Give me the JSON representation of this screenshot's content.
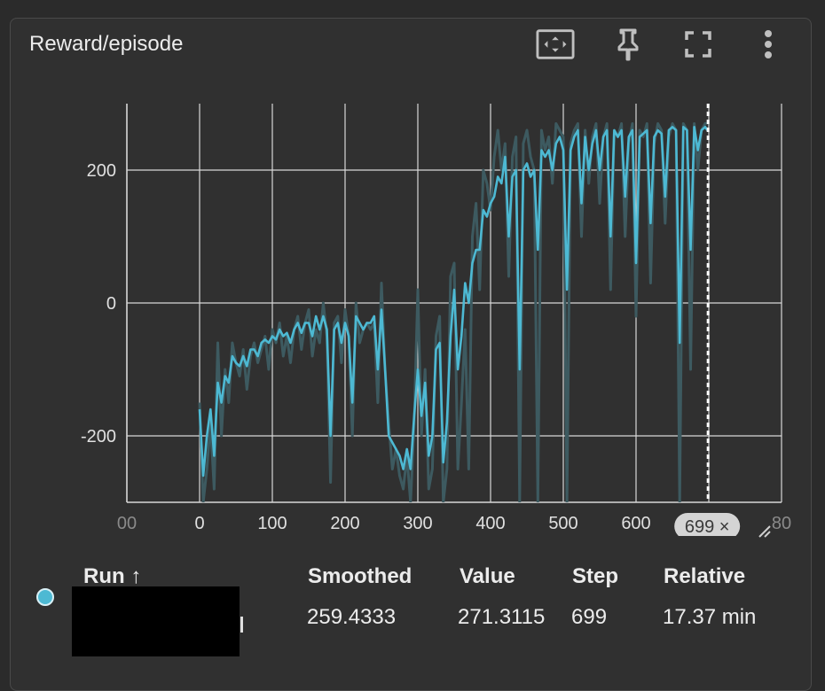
{
  "card": {
    "title": "Reward/episode"
  },
  "toolbar": {
    "fit_icon": "fit-domain-icon",
    "pin_icon": "pin-icon",
    "fullscreen_icon": "fullscreen-icon",
    "more_icon": "more-vert-icon"
  },
  "colors": {
    "raw": "#3d5a60",
    "smoothed": "#4db9d3",
    "background": "#303030",
    "grid": "#d8d8d8",
    "step_marker": "#ffffff"
  },
  "chart_data": {
    "type": "line",
    "title": "Reward/episode",
    "xlabel": "",
    "ylabel": "",
    "x_ticks": [
      "00",
      "0",
      "100",
      "200",
      "300",
      "400",
      "500",
      "600",
      "80"
    ],
    "y_ticks": [
      "200",
      "0",
      "-200"
    ],
    "xlim": [
      -100,
      800
    ],
    "ylim": [
      -300,
      300
    ],
    "grid": true,
    "step_marker": {
      "value": 699,
      "label": "699 ×"
    },
    "series": [
      {
        "role": "raw",
        "x": [
          0,
          5,
          10,
          15,
          20,
          25,
          30,
          35,
          40,
          45,
          50,
          55,
          60,
          65,
          70,
          75,
          80,
          85,
          90,
          95,
          100,
          105,
          110,
          115,
          120,
          125,
          130,
          135,
          140,
          145,
          150,
          155,
          160,
          165,
          170,
          175,
          180,
          185,
          190,
          195,
          200,
          205,
          210,
          215,
          220,
          225,
          230,
          235,
          240,
          245,
          250,
          255,
          260,
          265,
          270,
          275,
          280,
          285,
          290,
          295,
          300,
          305,
          310,
          315,
          320,
          325,
          330,
          335,
          340,
          345,
          350,
          355,
          360,
          365,
          370,
          375,
          380,
          385,
          390,
          395,
          400,
          405,
          410,
          415,
          420,
          425,
          430,
          435,
          440,
          445,
          450,
          455,
          460,
          465,
          470,
          475,
          480,
          485,
          490,
          495,
          500,
          505,
          510,
          515,
          520,
          525,
          530,
          535,
          540,
          545,
          550,
          555,
          560,
          565,
          570,
          575,
          580,
          585,
          590,
          595,
          600,
          605,
          610,
          615,
          620,
          625,
          630,
          635,
          640,
          645,
          650,
          655,
          660,
          665,
          670,
          675,
          680,
          685,
          690,
          695,
          699
        ],
        "y": [
          -150,
          -300,
          -250,
          -180,
          -280,
          -60,
          -200,
          -100,
          -150,
          -60,
          -90,
          -110,
          -70,
          -130,
          -80,
          -60,
          -90,
          -70,
          -50,
          -100,
          -40,
          -60,
          -30,
          -80,
          -50,
          -90,
          -40,
          -20,
          -70,
          -30,
          -10,
          -80,
          -40,
          -60,
          0,
          -50,
          -270,
          -30,
          -20,
          -90,
          -10,
          -50,
          -200,
          0,
          -60,
          -40,
          -30,
          -40,
          -30,
          -150,
          30,
          -100,
          -180,
          -250,
          -220,
          -260,
          -280,
          -230,
          -300,
          -180,
          20,
          -200,
          -100,
          -280,
          -250,
          -50,
          -20,
          -300,
          -250,
          40,
          60,
          -250,
          -150,
          -40,
          -250,
          100,
          150,
          20,
          200,
          180,
          140,
          220,
          260,
          200,
          240,
          40,
          220,
          250,
          -300,
          240,
          260,
          220,
          200,
          -300,
          260,
          230,
          250,
          180,
          270,
          260,
          250,
          -300,
          240,
          260,
          270,
          100,
          260,
          180,
          250,
          270,
          150,
          250,
          270,
          20,
          260,
          250,
          270,
          100,
          240,
          270,
          -20,
          260,
          250,
          270,
          30,
          240,
          270,
          260,
          120,
          250,
          270,
          260,
          -300,
          270,
          260,
          -100,
          270,
          200,
          260,
          270,
          271
        ]
      },
      {
        "role": "smoothed",
        "x": [
          0,
          5,
          10,
          15,
          20,
          25,
          30,
          35,
          40,
          45,
          50,
          55,
          60,
          65,
          70,
          75,
          80,
          85,
          90,
          95,
          100,
          105,
          110,
          115,
          120,
          125,
          130,
          135,
          140,
          145,
          150,
          155,
          160,
          165,
          170,
          175,
          180,
          185,
          190,
          195,
          200,
          205,
          210,
          215,
          220,
          225,
          230,
          235,
          240,
          245,
          250,
          255,
          260,
          265,
          270,
          275,
          280,
          285,
          290,
          295,
          300,
          305,
          310,
          315,
          320,
          325,
          330,
          335,
          340,
          345,
          350,
          355,
          360,
          365,
          370,
          375,
          380,
          385,
          390,
          395,
          400,
          405,
          410,
          415,
          420,
          425,
          430,
          435,
          440,
          445,
          450,
          455,
          460,
          465,
          470,
          475,
          480,
          485,
          490,
          495,
          500,
          505,
          510,
          515,
          520,
          525,
          530,
          535,
          540,
          545,
          550,
          555,
          560,
          565,
          570,
          575,
          580,
          585,
          590,
          595,
          600,
          605,
          610,
          615,
          620,
          625,
          630,
          635,
          640,
          645,
          650,
          655,
          660,
          665,
          670,
          675,
          680,
          685,
          690,
          695,
          699
        ],
        "y": [
          -160,
          -260,
          -200,
          -160,
          -230,
          -120,
          -150,
          -110,
          -120,
          -80,
          -90,
          -95,
          -80,
          -95,
          -70,
          -70,
          -80,
          -60,
          -55,
          -60,
          -50,
          -55,
          -40,
          -50,
          -45,
          -60,
          -40,
          -30,
          -45,
          -30,
          -30,
          -50,
          -20,
          -40,
          -20,
          -40,
          -200,
          -40,
          -30,
          -60,
          -30,
          -50,
          -150,
          -20,
          -30,
          -40,
          -30,
          -30,
          -20,
          -100,
          -10,
          -100,
          -200,
          -210,
          -220,
          -230,
          -250,
          -220,
          -250,
          -170,
          -100,
          -170,
          -120,
          -230,
          -200,
          -70,
          -60,
          -240,
          -180,
          -50,
          20,
          -100,
          -50,
          30,
          0,
          60,
          80,
          80,
          140,
          130,
          150,
          160,
          190,
          180,
          220,
          100,
          190,
          200,
          -100,
          200,
          210,
          190,
          200,
          80,
          230,
          220,
          230,
          200,
          240,
          250,
          230,
          20,
          230,
          250,
          260,
          150,
          250,
          200,
          240,
          260,
          200,
          250,
          260,
          100,
          260,
          250,
          260,
          160,
          250,
          260,
          60,
          250,
          255,
          260,
          120,
          250,
          260,
          255,
          160,
          260,
          265,
          260,
          -60,
          265,
          260,
          80,
          265,
          230,
          260,
          265,
          259
        ]
      }
    ],
    "table": {
      "headers": [
        "Run ↑",
        "Smoothed",
        "Value",
        "Step",
        "Relative"
      ],
      "rows": [
        {
          "run": "",
          "smoothed": "259.4333",
          "value": "271.3115",
          "step": "699",
          "relative": "17.37 min"
        }
      ]
    }
  }
}
